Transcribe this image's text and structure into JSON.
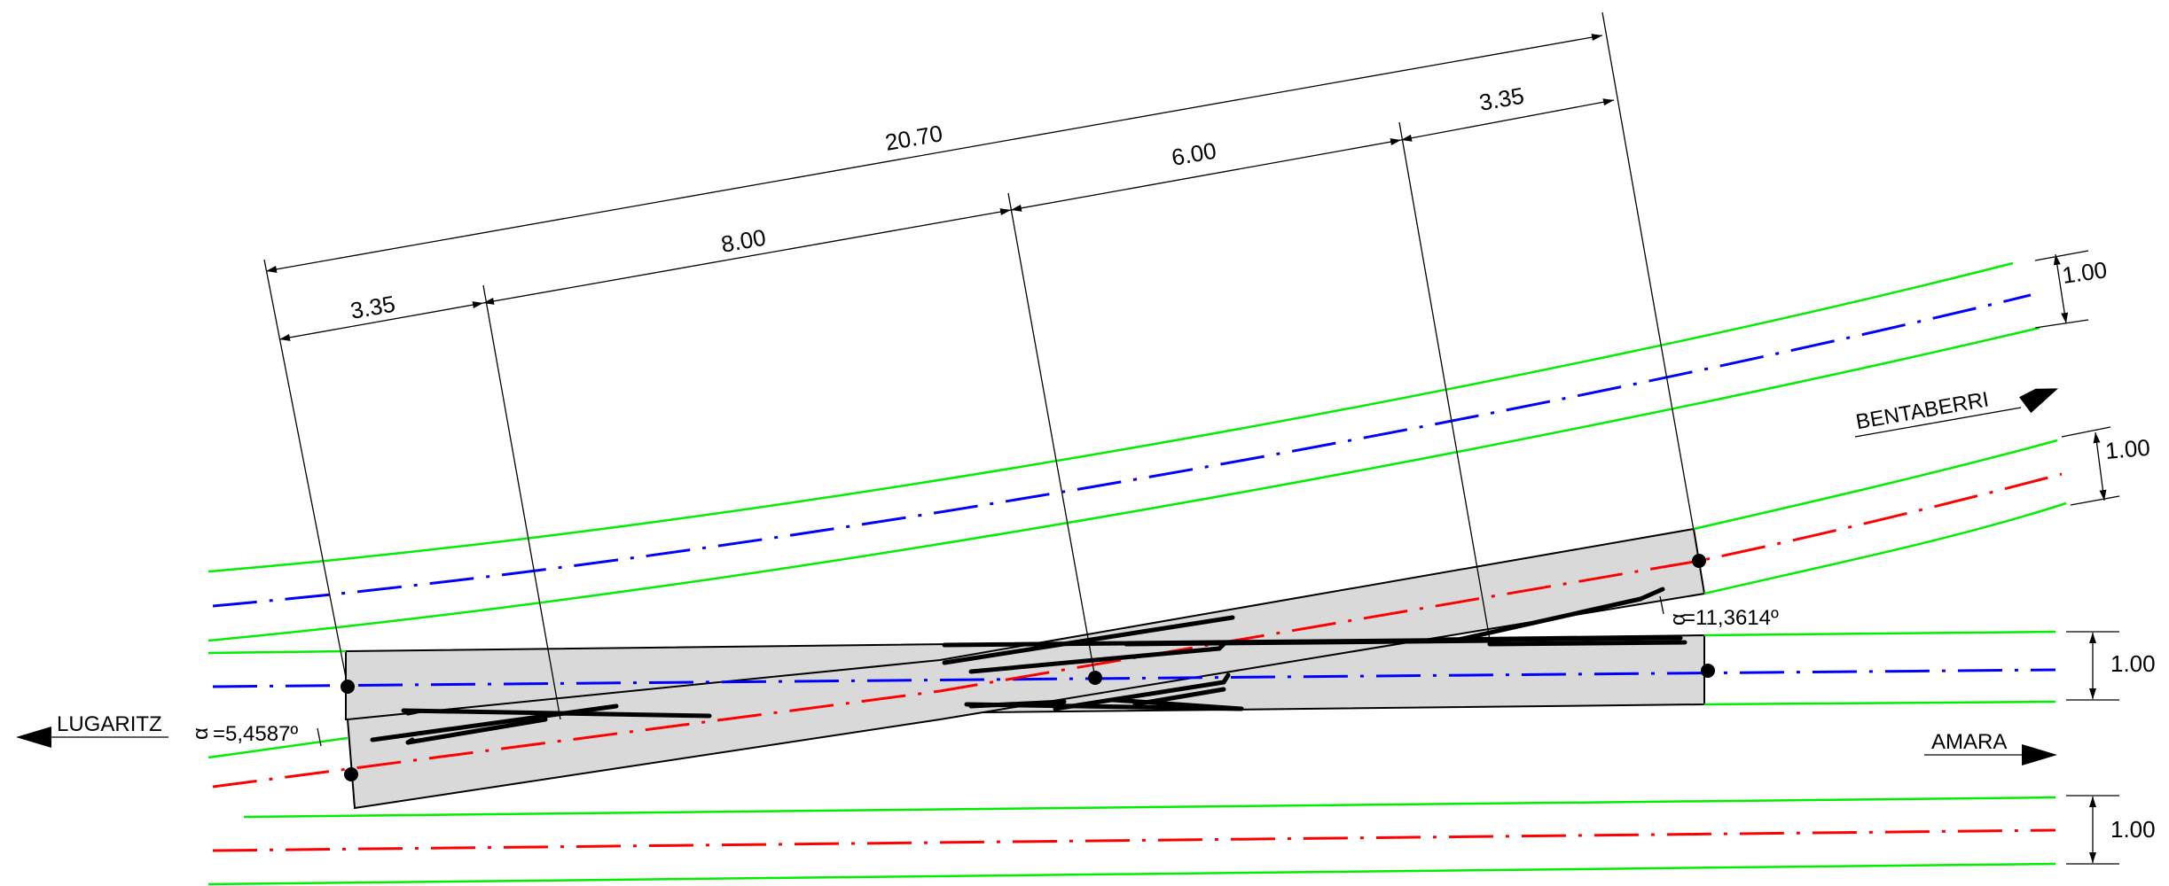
{
  "dimensions": {
    "overall": "20.70",
    "seg_left": "3.35",
    "seg_middle_left": "8.00",
    "seg_middle_right": "6.00",
    "seg_right": "3.35",
    "gap_top": "1.00",
    "gap_upper": "1.00",
    "gap_middle": "1.00",
    "gap_bottom": "1.00"
  },
  "angles": {
    "left": "=5,4587º",
    "right": "=11,3614º",
    "symbol": "α"
  },
  "directions": {
    "west": "LUGARITZ",
    "east_upper": "BENTABERRI",
    "east_lower": "AMARA"
  },
  "colors": {
    "track_edge": "#00ee00",
    "axis_primary": "#0000ff",
    "axis_secondary": "#ff0000",
    "slab_fill": "#d9d9d9"
  }
}
